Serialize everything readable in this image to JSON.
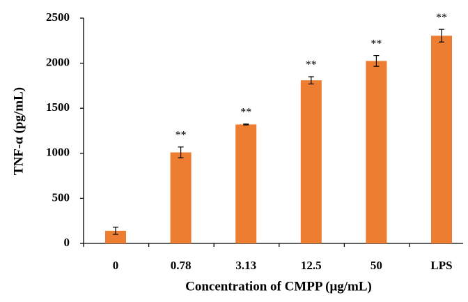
{
  "chart_data": {
    "type": "bar",
    "x_label": "Concentration of CMPP (μg/mL)",
    "y_label": "TNF-α (pg/mL)",
    "categories": [
      "0",
      "0.78",
      "3.13",
      "12.5",
      "50",
      "LPS"
    ],
    "values": [
      140,
      1010,
      1320,
      1810,
      2025,
      2305
    ],
    "errors": [
      40,
      60,
      5,
      40,
      60,
      70
    ],
    "annotations": [
      null,
      "**",
      "**",
      "**",
      "**",
      "**"
    ],
    "color": "#ed7d31",
    "ylim": [
      0,
      2500
    ],
    "yticks": [
      0,
      500,
      1000,
      1500,
      2000,
      2500
    ]
  }
}
